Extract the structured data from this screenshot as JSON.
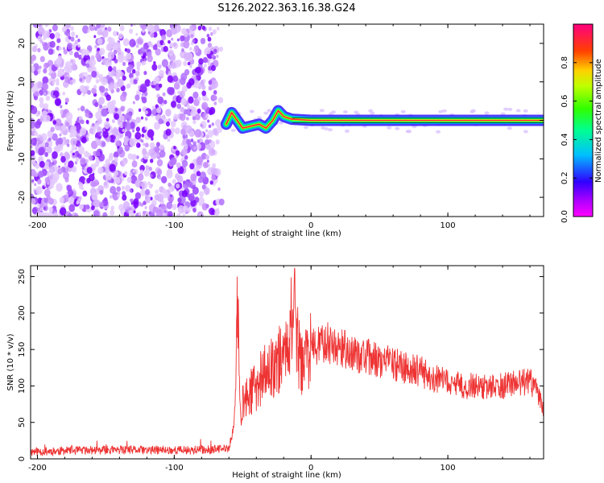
{
  "title": "S126.2022.363.16.38.G24",
  "chart_data": [
    {
      "type": "heatmap",
      "xlabel": "Height of straight line (km)",
      "ylabel": "Frequency (Hz)",
      "xlim": [
        -205,
        170
      ],
      "ylim": [
        -25,
        25
      ],
      "xticks": [
        -200,
        -100,
        0,
        100
      ],
      "yticks": [
        -20,
        -10,
        0,
        10,
        20
      ],
      "noise_region_x": [
        -205,
        -65
      ],
      "signal_start_x": -65,
      "signal_line_y": 0,
      "trace": [
        {
          "x": -62,
          "y": -1
        },
        {
          "x": -58,
          "y": 2
        },
        {
          "x": -54,
          "y": 0
        },
        {
          "x": -50,
          "y": -2
        },
        {
          "x": -44,
          "y": -1.5
        },
        {
          "x": -38,
          "y": -1
        },
        {
          "x": -33,
          "y": -2
        },
        {
          "x": -28,
          "y": 0
        },
        {
          "x": -24,
          "y": 2.5
        },
        {
          "x": -20,
          "y": 1
        },
        {
          "x": -14,
          "y": 0.3
        },
        {
          "x": 0,
          "y": 0
        },
        {
          "x": 30,
          "y": 0
        },
        {
          "x": 60,
          "y": 0
        },
        {
          "x": 100,
          "y": 0
        },
        {
          "x": 170,
          "y": 0
        }
      ],
      "colorbar": {
        "label": "Normalized spectral amplitude",
        "range": [
          0,
          1
        ],
        "ticks": [
          "0.0",
          "0.2",
          "0.4",
          "0.6",
          "0.8"
        ],
        "tick_values": [
          0.0,
          0.2,
          0.4,
          0.6,
          0.8
        ],
        "colormap": "gist_rainbow_r"
      }
    },
    {
      "type": "line",
      "xlabel": "Height of straight line (km)",
      "ylabel": "SNR (10 * v/v)",
      "xlim": [
        -205,
        170
      ],
      "ylim": [
        0,
        265
      ],
      "xticks": [
        -200,
        -100,
        0,
        100
      ],
      "yticks": [
        0,
        50,
        100,
        150,
        200,
        250
      ],
      "line_color": "#ee3333",
      "series": [
        {
          "x": [
            -205,
            -180,
            -150,
            -120,
            -90,
            -70,
            -60,
            -57,
            -55,
            -54,
            -52,
            -50,
            -45,
            -40,
            -35,
            -30,
            -25,
            -20,
            -15,
            -13,
            -12,
            -11,
            -8,
            -5,
            0,
            10,
            20,
            30,
            40,
            50,
            60,
            70,
            80,
            90,
            100,
            110,
            120,
            130,
            140,
            150,
            160,
            165,
            170
          ],
          "y": [
            10,
            11,
            12,
            12,
            12,
            13,
            14,
            40,
            80,
            250,
            60,
            75,
            90,
            100,
            115,
            120,
            135,
            140,
            180,
            200,
            262,
            180,
            130,
            140,
            150,
            160,
            155,
            145,
            140,
            135,
            130,
            125,
            120,
            110,
            105,
            100,
            100,
            98,
            100,
            105,
            105,
            95,
            70
          ]
        }
      ]
    }
  ]
}
